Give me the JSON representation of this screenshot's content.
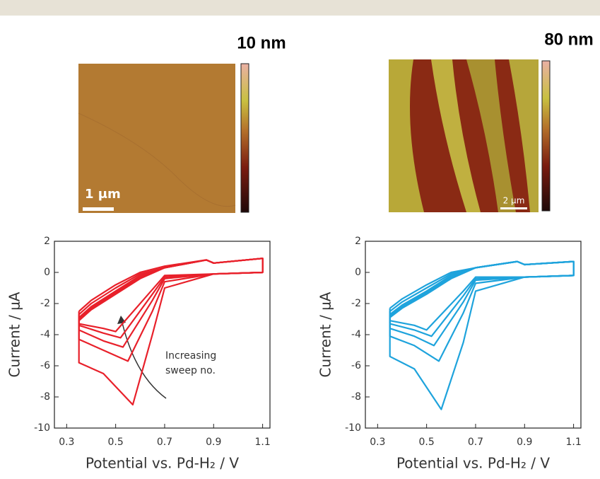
{
  "panels": [
    {
      "scale_label": "10 nm",
      "scale_bar": "1 μm"
    },
    {
      "scale_label": "80 nm",
      "scale_bar": "2 μm"
    }
  ],
  "chart_data": [
    {
      "type": "line",
      "ylabel": "Current / μA",
      "xlabel": "Potential vs. Pd-H₂ / V",
      "xlim": [
        0.25,
        1.13
      ],
      "ylim": [
        -10,
        2
      ],
      "xticks": [
        0.3,
        0.5,
        0.7,
        0.9,
        1.1
      ],
      "yticks": [
        -10,
        -8,
        -6,
        -4,
        -2,
        0,
        2
      ],
      "annotation": [
        "Increasing",
        "sweep no."
      ],
      "series": [
        {
          "color": "#e8202a",
          "x": [
            0.35,
            0.4,
            0.5,
            0.6,
            0.7,
            0.87,
            0.9,
            1.1,
            1.1,
            0.9,
            0.7,
            0.65,
            0.57,
            0.45,
            0.35,
            0.35
          ],
          "values": [
            -2.5,
            -1.8,
            -0.8,
            0,
            0.4,
            0.8,
            0.6,
            0.9,
            0,
            -0.1,
            -1.0,
            -4.0,
            -8.5,
            -6.5,
            -5.8,
            -2.5
          ]
        },
        {
          "color": "#e8202a",
          "x": [
            0.35,
            0.4,
            0.5,
            0.6,
            0.7,
            0.87,
            0.9,
            1.1,
            1.1,
            0.9,
            0.7,
            0.65,
            0.55,
            0.45,
            0.35,
            0.35
          ],
          "values": [
            -2.7,
            -2.0,
            -1.0,
            -0.1,
            0.3,
            0.8,
            0.6,
            0.9,
            0,
            -0.1,
            -0.6,
            -2.5,
            -5.7,
            -5.0,
            -4.3,
            -2.7
          ]
        },
        {
          "color": "#e8202a",
          "x": [
            0.35,
            0.4,
            0.5,
            0.6,
            0.7,
            0.87,
            0.9,
            1.1,
            1.1,
            0.9,
            0.7,
            0.65,
            0.53,
            0.45,
            0.35,
            0.35
          ],
          "values": [
            -2.9,
            -2.2,
            -1.2,
            -0.2,
            0.3,
            0.8,
            0.6,
            0.9,
            0,
            -0.1,
            -0.4,
            -1.8,
            -4.8,
            -4.4,
            -3.7,
            -2.9
          ]
        },
        {
          "color": "#e8202a",
          "x": [
            0.35,
            0.4,
            0.5,
            0.6,
            0.7,
            0.87,
            0.9,
            1.1,
            1.1,
            0.9,
            0.7,
            0.65,
            0.52,
            0.45,
            0.35,
            0.35
          ],
          "values": [
            -3.0,
            -2.3,
            -1.3,
            -0.3,
            0.3,
            0.8,
            0.6,
            0.9,
            0,
            -0.1,
            -0.3,
            -1.4,
            -4.2,
            -3.9,
            -3.4,
            -3.0
          ]
        },
        {
          "color": "#e8202a",
          "x": [
            0.35,
            0.4,
            0.5,
            0.6,
            0.7,
            0.87,
            0.9,
            1.1,
            1.1,
            0.9,
            0.7,
            0.65,
            0.5,
            0.45,
            0.35,
            0.35
          ],
          "values": [
            -3.1,
            -2.4,
            -1.4,
            -0.4,
            0.3,
            0.8,
            0.6,
            0.9,
            0,
            -0.1,
            -0.2,
            -1.1,
            -3.8,
            -3.6,
            -3.3,
            -3.1
          ]
        }
      ]
    },
    {
      "type": "line",
      "ylabel": "Current / μA",
      "xlabel": "Potential vs. Pd-H₂ / V",
      "xlim": [
        0.25,
        1.13
      ],
      "ylim": [
        -10,
        2
      ],
      "xticks": [
        0.3,
        0.5,
        0.7,
        0.9,
        1.1
      ],
      "yticks": [
        -10,
        -8,
        -6,
        -4,
        -2,
        0,
        2
      ],
      "series": [
        {
          "color": "#1ea3dc",
          "x": [
            0.35,
            0.4,
            0.5,
            0.6,
            0.7,
            0.87,
            0.9,
            1.1,
            1.1,
            0.9,
            0.7,
            0.65,
            0.56,
            0.45,
            0.35,
            0.35
          ],
          "values": [
            -2.3,
            -1.7,
            -0.8,
            0,
            0.3,
            0.7,
            0.5,
            0.7,
            -0.2,
            -0.3,
            -1.2,
            -4.5,
            -8.8,
            -6.2,
            -5.4,
            -2.3
          ]
        },
        {
          "color": "#1ea3dc",
          "x": [
            0.35,
            0.4,
            0.5,
            0.6,
            0.7,
            0.87,
            0.9,
            1.1,
            1.1,
            0.9,
            0.7,
            0.65,
            0.55,
            0.45,
            0.35,
            0.35
          ],
          "values": [
            -2.5,
            -1.9,
            -1.0,
            -0.1,
            0.3,
            0.7,
            0.5,
            0.7,
            -0.2,
            -0.3,
            -0.7,
            -2.6,
            -5.7,
            -4.7,
            -4.1,
            -2.5
          ]
        },
        {
          "color": "#1ea3dc",
          "x": [
            0.35,
            0.4,
            0.5,
            0.6,
            0.7,
            0.87,
            0.9,
            1.1,
            1.1,
            0.9,
            0.7,
            0.65,
            0.53,
            0.45,
            0.35,
            0.35
          ],
          "values": [
            -2.7,
            -2.1,
            -1.2,
            -0.2,
            0.3,
            0.7,
            0.5,
            0.7,
            -0.2,
            -0.3,
            -0.5,
            -1.9,
            -4.7,
            -4.1,
            -3.6,
            -2.7
          ]
        },
        {
          "color": "#1ea3dc",
          "x": [
            0.35,
            0.4,
            0.5,
            0.6,
            0.7,
            0.87,
            0.9,
            1.1,
            1.1,
            0.9,
            0.7,
            0.65,
            0.52,
            0.45,
            0.35,
            0.35
          ],
          "values": [
            -2.8,
            -2.2,
            -1.3,
            -0.3,
            0.3,
            0.7,
            0.5,
            0.7,
            -0.2,
            -0.3,
            -0.4,
            -1.5,
            -4.1,
            -3.7,
            -3.3,
            -2.8
          ]
        },
        {
          "color": "#1ea3dc",
          "x": [
            0.35,
            0.4,
            0.5,
            0.6,
            0.7,
            0.87,
            0.9,
            1.1,
            1.1,
            0.9,
            0.7,
            0.65,
            0.5,
            0.45,
            0.35,
            0.35
          ],
          "values": [
            -2.9,
            -2.3,
            -1.4,
            -0.4,
            0.3,
            0.7,
            0.5,
            0.7,
            -0.2,
            -0.3,
            -0.3,
            -1.2,
            -3.7,
            -3.4,
            -3.1,
            -2.9
          ]
        }
      ]
    }
  ]
}
